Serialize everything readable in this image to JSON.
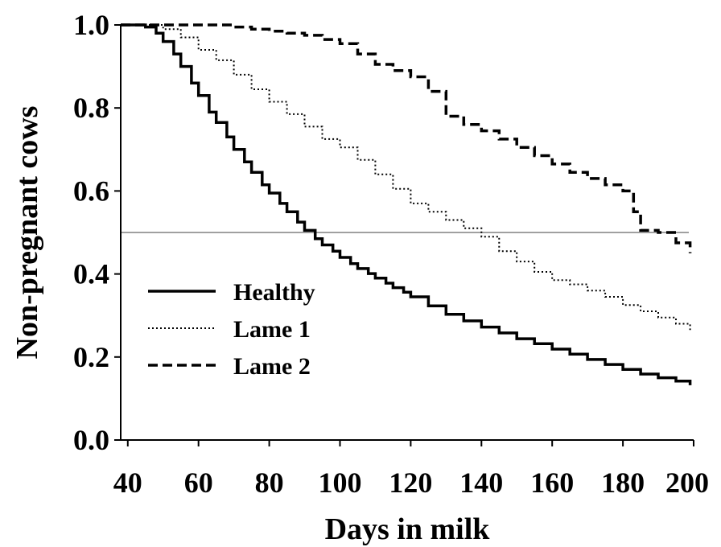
{
  "chart_data": {
    "type": "line",
    "title": "",
    "xlabel": "Days in milk",
    "ylabel": "Non-pregnant cows",
    "xlim": [
      38,
      200
    ],
    "ylim": [
      0,
      1.0
    ],
    "x_ticks": [
      40,
      60,
      80,
      100,
      120,
      140,
      160,
      180,
      200
    ],
    "y_ticks": [
      0.0,
      0.2,
      0.4,
      0.6,
      0.8,
      1.0
    ],
    "x_tick_labels": [
      "40",
      "60",
      "80",
      "100",
      "120",
      "140",
      "160",
      "180",
      "200"
    ],
    "y_tick_labels": [
      "0.0",
      "0.2",
      "0.4",
      "0.6",
      "0.8",
      "1.0"
    ],
    "grid": false,
    "legend_placement": "center-left",
    "reference_line": {
      "y": 0.5,
      "color": "#808080"
    },
    "series": [
      {
        "name": "Healthy",
        "style": "solid",
        "color": "#000000",
        "x": [
          38,
          42,
          45,
          48,
          50,
          53,
          55,
          58,
          60,
          63,
          65,
          68,
          70,
          73,
          75,
          78,
          80,
          83,
          85,
          88,
          90,
          93,
          95,
          98,
          100,
          103,
          105,
          108,
          110,
          113,
          115,
          118,
          120,
          125,
          130,
          135,
          140,
          145,
          150,
          155,
          160,
          165,
          170,
          175,
          180,
          185,
          190,
          195,
          199
        ],
        "y": [
          1.0,
          1.0,
          0.995,
          0.98,
          0.96,
          0.93,
          0.9,
          0.86,
          0.83,
          0.79,
          0.765,
          0.73,
          0.7,
          0.67,
          0.645,
          0.615,
          0.595,
          0.57,
          0.55,
          0.525,
          0.505,
          0.485,
          0.47,
          0.455,
          0.44,
          0.425,
          0.413,
          0.401,
          0.39,
          0.378,
          0.367,
          0.356,
          0.345,
          0.323,
          0.303,
          0.287,
          0.272,
          0.258,
          0.244,
          0.232,
          0.219,
          0.207,
          0.194,
          0.182,
          0.17,
          0.159,
          0.15,
          0.142,
          0.132
        ]
      },
      {
        "name": "Lame 1",
        "style": "dotted",
        "color": "#000000",
        "x": [
          38,
          45,
          50,
          55,
          60,
          65,
          70,
          75,
          80,
          85,
          90,
          95,
          100,
          105,
          110,
          115,
          120,
          125,
          130,
          135,
          140,
          145,
          150,
          155,
          160,
          165,
          170,
          175,
          180,
          185,
          190,
          195,
          199
        ],
        "y": [
          1.0,
          1.0,
          0.99,
          0.97,
          0.94,
          0.915,
          0.88,
          0.845,
          0.815,
          0.785,
          0.755,
          0.725,
          0.705,
          0.675,
          0.64,
          0.605,
          0.57,
          0.55,
          0.53,
          0.51,
          0.49,
          0.455,
          0.43,
          0.405,
          0.385,
          0.375,
          0.36,
          0.345,
          0.325,
          0.31,
          0.295,
          0.28,
          0.265
        ]
      },
      {
        "name": "Lame 2",
        "style": "dashed",
        "color": "#000000",
        "x": [
          38,
          50,
          60,
          70,
          75,
          80,
          85,
          90,
          95,
          100,
          105,
          110,
          115,
          120,
          125,
          130,
          135,
          140,
          145,
          150,
          155,
          160,
          165,
          170,
          175,
          180,
          183,
          185,
          190,
          195,
          199
        ],
        "y": [
          1.0,
          1.0,
          1.0,
          0.995,
          0.99,
          0.985,
          0.98,
          0.975,
          0.965,
          0.955,
          0.93,
          0.905,
          0.89,
          0.875,
          0.84,
          0.78,
          0.76,
          0.745,
          0.725,
          0.705,
          0.685,
          0.665,
          0.645,
          0.63,
          0.615,
          0.6,
          0.55,
          0.505,
          0.5,
          0.475,
          0.45
        ]
      }
    ]
  }
}
